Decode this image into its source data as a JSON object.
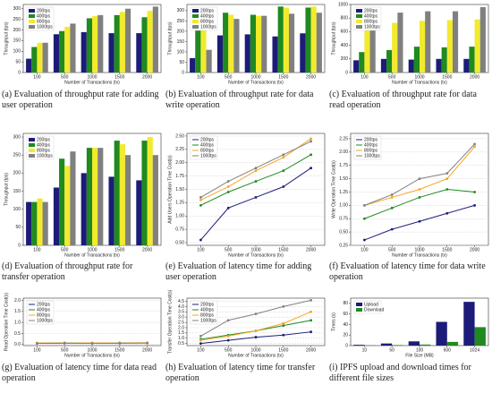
{
  "chart_data": [
    {
      "type": "bar",
      "caption": "(a) Evaluation of throughput rate for adding user operation",
      "x_label": "Number of Transactions (tx)",
      "y_label": "Throughput (tps)",
      "legend": "upper left",
      "grid": false,
      "categories": [
        "100",
        "500",
        "1000",
        "1500",
        "2000"
      ],
      "series": [
        {
          "name": "200tps",
          "color": "#1c1c78",
          "values": [
            65,
            180,
            190,
            185,
            185
          ]
        },
        {
          "name": "400tps",
          "color": "#1f8a1f",
          "values": [
            120,
            195,
            255,
            270,
            260
          ]
        },
        {
          "name": "800tps",
          "color": "#f2ea2c",
          "values": [
            140,
            215,
            265,
            285,
            290
          ]
        },
        {
          "name": "1000tps",
          "color": "#808080",
          "values": [
            140,
            230,
            270,
            300,
            310
          ]
        }
      ],
      "ylim": [
        0,
        320
      ],
      "yticks": [
        0,
        50,
        100,
        150,
        200,
        250,
        300
      ]
    },
    {
      "type": "bar",
      "caption": "(b) Evaluation of throughput rate for data write operation",
      "x_label": "Number of Transactions (tx)",
      "y_label": "Throughput (tps)",
      "legend": "upper left",
      "grid": false,
      "categories": [
        "100",
        "500",
        "1000",
        "1500",
        "2000"
      ],
      "series": [
        {
          "name": "200tps",
          "color": "#1c1c78",
          "values": [
            70,
            180,
            185,
            175,
            190
          ]
        },
        {
          "name": "400tps",
          "color": "#1f8a1f",
          "values": [
            235,
            290,
            280,
            320,
            315
          ]
        },
        {
          "name": "800tps",
          "color": "#f2ea2c",
          "values": [
            210,
            280,
            275,
            315,
            320
          ]
        },
        {
          "name": "1000tps",
          "color": "#808080",
          "values": [
            110,
            260,
            275,
            285,
            290
          ]
        }
      ],
      "ylim": [
        0,
        330
      ],
      "yticks": [
        0,
        50,
        100,
        150,
        200,
        250,
        300
      ]
    },
    {
      "type": "bar",
      "caption": "(c) Evaluation of throughput rate for data read operation",
      "x_label": "Number of Transactions (tx)",
      "y_label": "Throughput (tps)",
      "legend": "upper left",
      "grid": false,
      "categories": [
        "100",
        "500",
        "1000",
        "1500",
        "2000"
      ],
      "series": [
        {
          "name": "200tps",
          "color": "#1c1c78",
          "values": [
            180,
            200,
            190,
            200,
            200
          ]
        },
        {
          "name": "400tps",
          "color": "#1f8a1f",
          "values": [
            300,
            330,
            380,
            370,
            380
          ]
        },
        {
          "name": "800tps",
          "color": "#f2ea2c",
          "values": [
            700,
            730,
            760,
            770,
            780
          ]
        },
        {
          "name": "1000tps",
          "color": "#808080",
          "values": [
            680,
            880,
            900,
            900,
            960
          ]
        }
      ],
      "ylim": [
        0,
        1000
      ],
      "yticks": [
        0,
        200,
        400,
        600,
        800,
        1000
      ]
    },
    {
      "type": "bar",
      "caption": "(d) Evaluation of throughput rate for transfer operation",
      "x_label": "Number of Transactions (tx)",
      "y_label": "Throughput (tps)",
      "legend": "upper left",
      "grid": false,
      "categories": [
        "100",
        "500",
        "1000",
        "1500",
        "2000"
      ],
      "series": [
        {
          "name": "200tps",
          "color": "#1c1c78",
          "values": [
            120,
            160,
            200,
            190,
            180
          ]
        },
        {
          "name": "400tps",
          "color": "#1f8a1f",
          "values": [
            120,
            240,
            270,
            290,
            290
          ]
        },
        {
          "name": "800tps",
          "color": "#f2ea2c",
          "values": [
            130,
            220,
            270,
            280,
            300
          ]
        },
        {
          "name": "1000tps",
          "color": "#808080",
          "values": [
            120,
            260,
            270,
            250,
            250
          ]
        }
      ],
      "ylim": [
        0,
        310
      ],
      "yticks": [
        0,
        50,
        100,
        150,
        200,
        250,
        300
      ]
    },
    {
      "type": "line",
      "caption": "(e) Evaluation of latency time for adding user operation",
      "x_label": "Number of Transactions (tx)",
      "y_label": "Add Users Operation Time Cost(s)",
      "legend": "upper left",
      "grid": true,
      "categories": [
        "100",
        "500",
        "1000",
        "1500",
        "2000"
      ],
      "series": [
        {
          "name": "200tps",
          "color": "#1c1c78",
          "values": [
            0.55,
            1.15,
            1.35,
            1.55,
            1.9
          ]
        },
        {
          "name": "400tps",
          "color": "#1f8a1f",
          "values": [
            1.2,
            1.45,
            1.65,
            1.85,
            2.15
          ]
        },
        {
          "name": "800tps",
          "color": "#f5a623",
          "values": [
            1.3,
            1.55,
            1.85,
            2.1,
            2.45
          ]
        },
        {
          "name": "1000tps",
          "color": "#808080",
          "values": [
            1.35,
            1.65,
            1.9,
            2.15,
            2.4
          ]
        }
      ],
      "ylim": [
        0.45,
        2.55
      ],
      "yticks": [
        {
          "value": 0.5,
          "label": "0.50"
        },
        {
          "value": 0.75,
          "label": "0.75"
        },
        {
          "value": 1,
          "label": "1.00"
        },
        {
          "value": 1.25,
          "label": "1.25"
        },
        {
          "value": 1.5,
          "label": "1.50"
        },
        {
          "value": 1.75,
          "label": "1.75"
        },
        {
          "value": 2,
          "label": "2.00"
        },
        {
          "value": 2.25,
          "label": "2.25"
        },
        {
          "value": 2.5,
          "label": "2.50"
        }
      ]
    },
    {
      "type": "line",
      "caption": "(f) Evaluation of latency time for data write operation",
      "x_label": "Number of Transactions (tx)",
      "y_label": "Write Operation Time Cost(s)",
      "legend": "upper left",
      "grid": true,
      "categories": [
        "100",
        "500",
        "1000",
        "1500",
        "2000"
      ],
      "series": [
        {
          "name": "200tps",
          "color": "#1c1c78",
          "values": [
            0.35,
            0.55,
            0.7,
            0.85,
            1.0
          ]
        },
        {
          "name": "400tps",
          "color": "#1f8a1f",
          "values": [
            0.75,
            0.95,
            1.15,
            1.3,
            1.25
          ]
        },
        {
          "name": "800tps",
          "color": "#f5a623",
          "values": [
            1.0,
            1.15,
            1.3,
            1.5,
            2.1
          ]
        },
        {
          "name": "1000tps",
          "color": "#808080",
          "values": [
            1.0,
            1.2,
            1.5,
            1.6,
            2.15
          ]
        }
      ],
      "ylim": [
        0.25,
        2.35
      ],
      "yticks": [
        {
          "value": 0.25,
          "label": "0.25"
        },
        {
          "value": 0.5,
          "label": "0.50"
        },
        {
          "value": 0.75,
          "label": "0.75"
        },
        {
          "value": 1,
          "label": "1.00"
        },
        {
          "value": 1.25,
          "label": "1.25"
        },
        {
          "value": 1.5,
          "label": "1.50"
        },
        {
          "value": 1.75,
          "label": "1.75"
        },
        {
          "value": 2,
          "label": "2.00"
        },
        {
          "value": 2.25,
          "label": "2.25"
        }
      ]
    },
    {
      "type": "line",
      "caption": "(g) Evaluation of latency time for data read operation",
      "x_label": "Number of Transactions (tx)",
      "y_label": "Read Operation Time Cost(s)",
      "legend": "upper left",
      "grid": true,
      "categories": [
        "100",
        "500",
        "1000",
        "1500",
        "2000"
      ],
      "series": [
        {
          "name": "200tps",
          "color": "#1c1c78",
          "values": [
            0.05,
            0.06,
            0.06,
            0.06,
            0.07
          ]
        },
        {
          "name": "400tps",
          "color": "#1f8a1f",
          "values": [
            0.06,
            0.07,
            0.06,
            0.07,
            0.07
          ]
        },
        {
          "name": "800tps",
          "color": "#f5a623",
          "values": [
            0.07,
            0.07,
            0.07,
            0.07,
            0.08
          ]
        },
        {
          "name": "1000tps",
          "color": "#808080",
          "values": [
            0.05,
            0.06,
            0.05,
            0.06,
            0.06
          ]
        }
      ],
      "ylim": [
        -0.05,
        2.1
      ],
      "yticks": [
        {
          "value": 0,
          "label": "0.0"
        },
        {
          "value": 0.5,
          "label": "0.5"
        },
        {
          "value": 1,
          "label": "1.0"
        },
        {
          "value": 1.5,
          "label": "1.5"
        },
        {
          "value": 2,
          "label": "2.0"
        }
      ]
    },
    {
      "type": "line",
      "caption": "(h) Evaluation of latency time for transfer operation",
      "x_label": "Number of Transactions (tx)",
      "y_label": "Transfer Operation Time Cost(s)",
      "legend": "upper left",
      "grid": true,
      "categories": [
        "100",
        "500",
        "1000",
        "1500",
        "2000"
      ],
      "series": [
        {
          "name": "200tps",
          "color": "#1c1c78",
          "values": [
            0.5,
            0.8,
            1.1,
            1.3,
            1.6
          ]
        },
        {
          "name": "400tps",
          "color": "#1f8a1f",
          "values": [
            0.9,
            1.3,
            1.7,
            2.2,
            2.7
          ]
        },
        {
          "name": "800tps",
          "color": "#f5a623",
          "values": [
            0.8,
            1.2,
            1.7,
            2.4,
            3.5
          ]
        },
        {
          "name": "1000tps",
          "color": "#808080",
          "values": [
            1.2,
            2.7,
            3.3,
            4.0,
            4.6
          ]
        }
      ],
      "ylim": [
        0.3,
        4.8
      ],
      "yticks": [
        0.5,
        {
          "value": 1,
          "label": "1.0"
        },
        1.5,
        {
          "value": 2,
          "label": "2.0"
        },
        2.5,
        {
          "value": 3,
          "label": "3.0"
        },
        3.5,
        {
          "value": 4,
          "label": "4.0"
        },
        4.5
      ]
    },
    {
      "type": "bar",
      "caption": "(i) IPFS upload and download times for different file sizes",
      "x_label": "File Size (MB)",
      "y_label": "Times (s)",
      "legend": "upper left",
      "grid": false,
      "categories": [
        "10",
        "50",
        "100",
        "500",
        "1024"
      ],
      "series": [
        {
          "name": "Upload",
          "color": "#1c1c78",
          "values": [
            1.5,
            4,
            8,
            45,
            83
          ]
        },
        {
          "name": "Download",
          "color": "#1f8a1f",
          "values": [
            0.5,
            1,
            2,
            7,
            35
          ]
        }
      ],
      "ylim": [
        0,
        90
      ],
      "yticks": [
        0,
        20,
        40,
        60,
        80
      ]
    }
  ]
}
